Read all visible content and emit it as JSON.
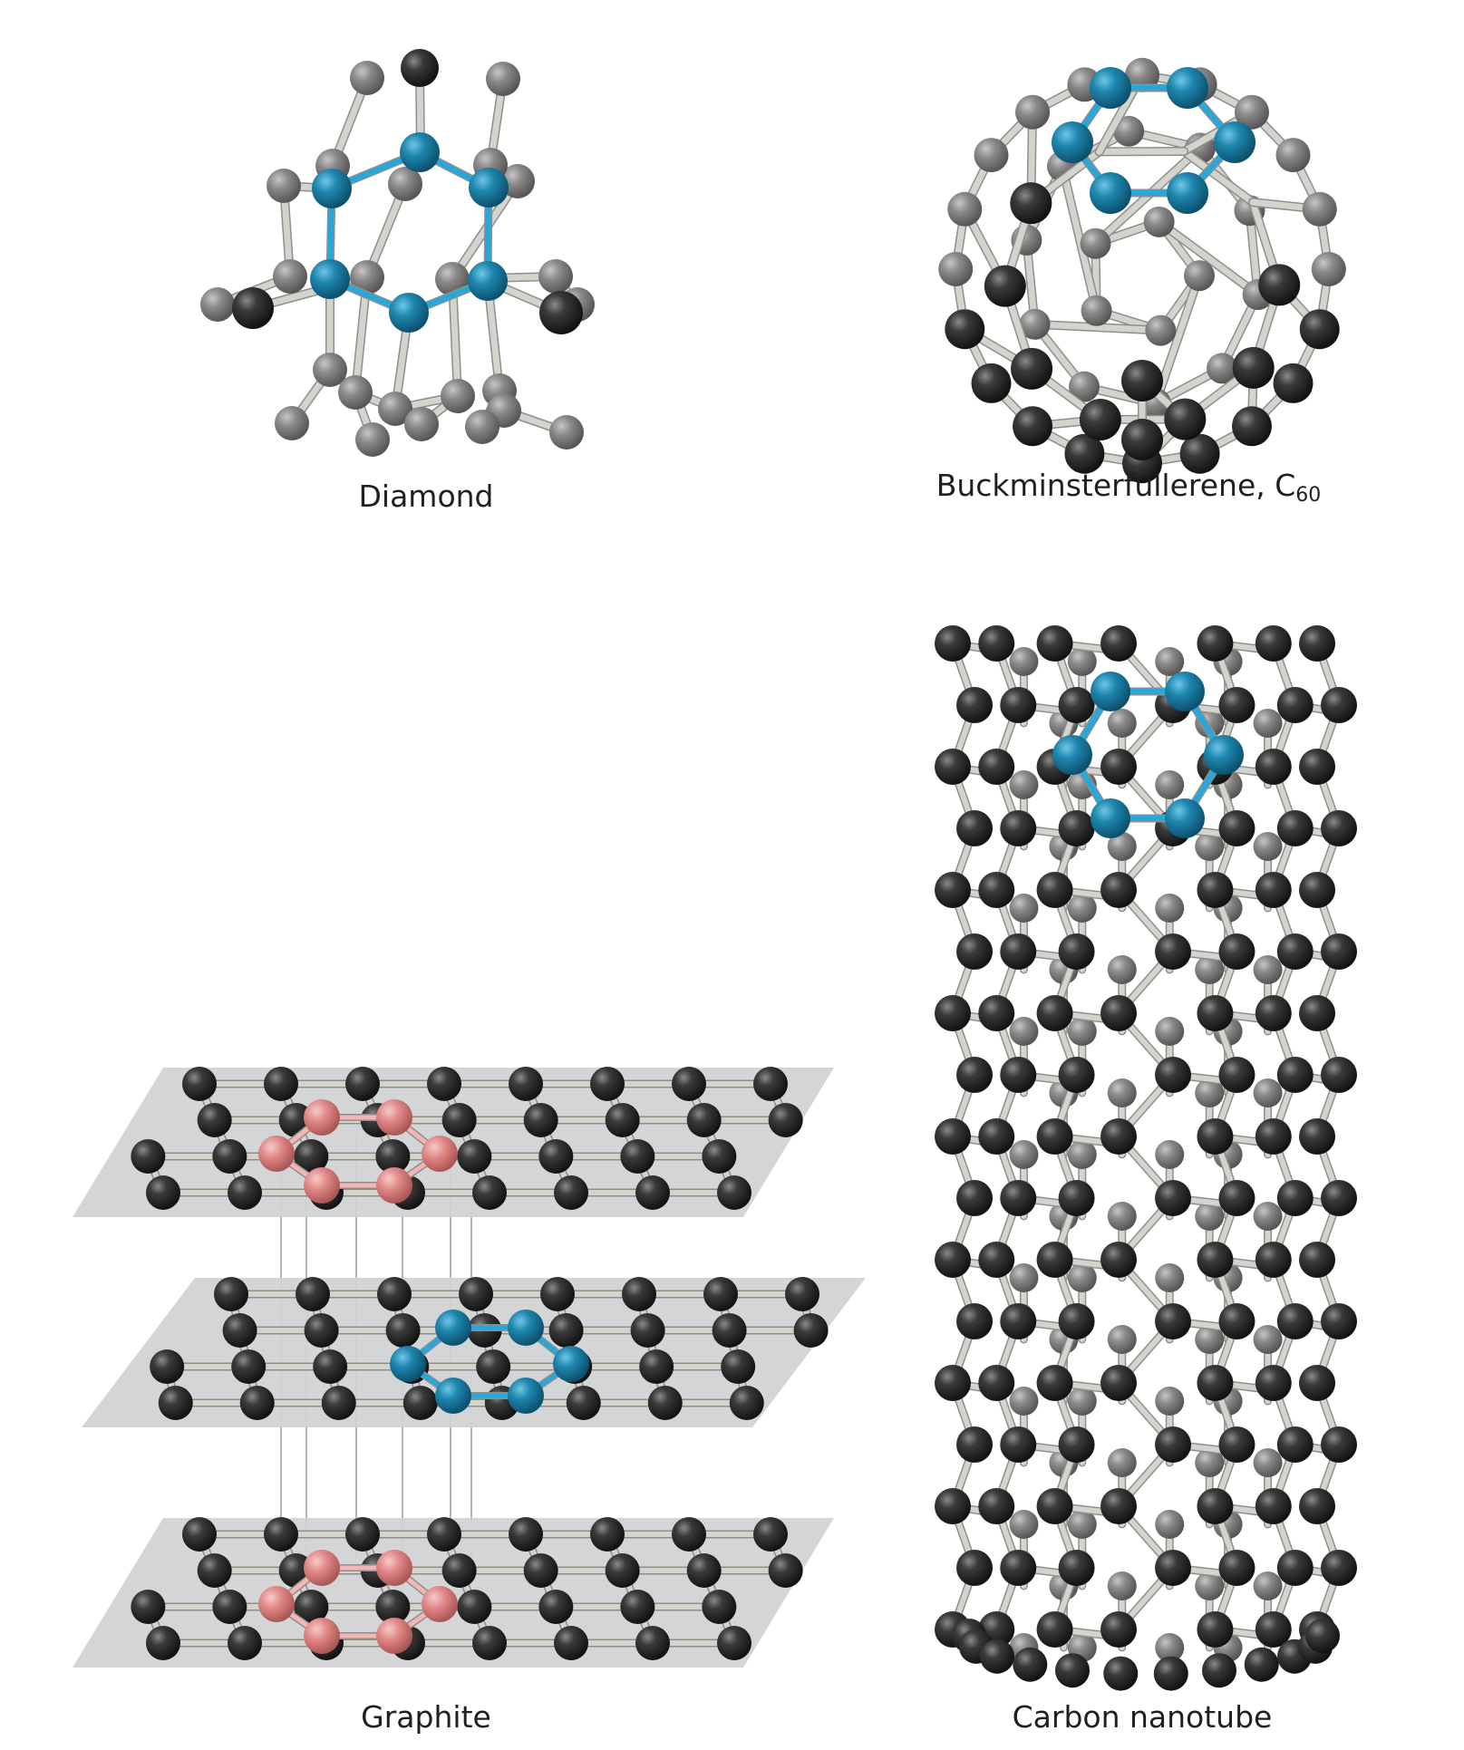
{
  "figure": {
    "colors": {
      "atom_dark": "#2b2b2b",
      "atom_light": "#8e8c8c",
      "atom_highlight": "#1f86ad",
      "atom_graphite_pink": "#e58c8c",
      "bond": "#d4d4ce",
      "bond_highlight": "#27a8dc",
      "bond_pink": "#f2b6b6",
      "plane": "#d2d3d4"
    },
    "panels": [
      {
        "id": "diamond",
        "label": "Diamond"
      },
      {
        "id": "buckyball",
        "label": "Buckminsterfullerene, C",
        "subscript": "60"
      },
      {
        "id": "graphite",
        "label": "Graphite"
      },
      {
        "id": "nanotube",
        "label": "Carbon nanotube"
      }
    ]
  }
}
